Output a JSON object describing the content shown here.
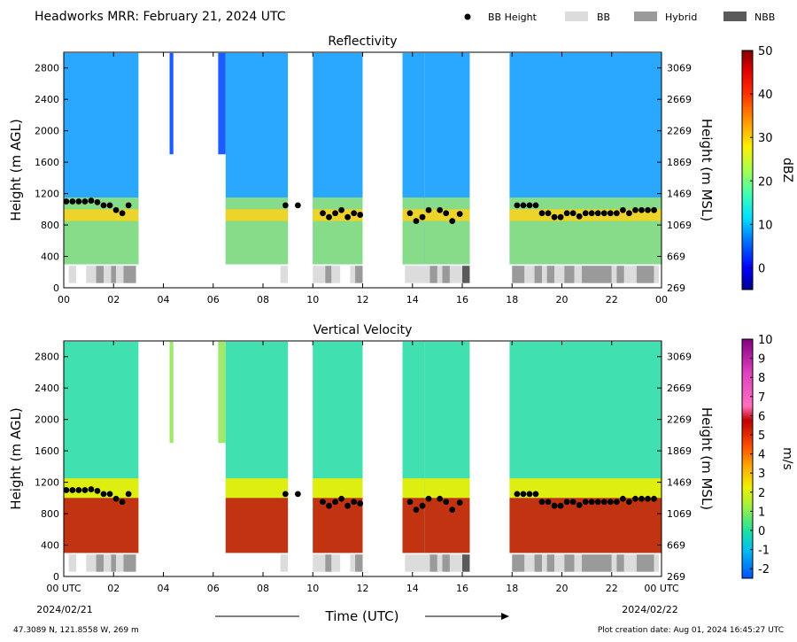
{
  "header": {
    "title": "Headworks MRR:  February 21, 2024 UTC",
    "legend": [
      {
        "label": "BB Height",
        "marker": "dot",
        "color": "#000000"
      },
      {
        "label": "BB",
        "marker": "box",
        "color": "#dcdcdc"
      },
      {
        "label": "Hybrid",
        "marker": "box",
        "color": "#9a9a9a"
      },
      {
        "label": "NBB",
        "marker": "box",
        "color": "#5a5a5a"
      }
    ]
  },
  "footer": {
    "location": "47.3089 N, 121.8558 W, 269 m",
    "creation": "Plot creation date: Aug 01, 2024 16:45:27 UTC",
    "start_date": "2024/02/21",
    "end_date": "2024/02/22",
    "xlabel": "Time (UTC)"
  },
  "chart_data": [
    {
      "type": "heatmap",
      "title": "Reflectivity",
      "ylabel": "Height (m AGL)",
      "ylabel_right": "Height (m MSL)",
      "ylim": [
        0,
        3000
      ],
      "xlim": [
        0,
        24
      ],
      "yticks": [
        0,
        400,
        800,
        1200,
        1600,
        2000,
        2400,
        2800
      ],
      "yticks_right": [
        269,
        669,
        1069,
        1469,
        1869,
        2269,
        2669,
        3069
      ],
      "xticks": [
        "00",
        "02",
        "04",
        "06",
        "08",
        "10",
        "12",
        "14",
        "16",
        "18",
        "20",
        "22",
        "00"
      ],
      "colorbar": {
        "label": "dBZ",
        "range": [
          -5,
          50
        ],
        "ticks": [
          0,
          10,
          20,
          30,
          40,
          50
        ]
      },
      "bb_height_label": "BB Height"
    },
    {
      "type": "heatmap",
      "title": "Vertical Velocity",
      "ylabel": "Height (m AGL)",
      "ylabel_right": "Height (m MSL)",
      "ylim": [
        0,
        3000
      ],
      "xlim": [
        0,
        24
      ],
      "yticks": [
        0,
        400,
        800,
        1200,
        1600,
        2000,
        2400,
        2800
      ],
      "yticks_right": [
        269,
        669,
        1069,
        1469,
        1869,
        2269,
        2669,
        3069
      ],
      "xticks": [
        "00 UTC",
        "02",
        "04",
        "06",
        "08",
        "10",
        "12",
        "14",
        "16",
        "18",
        "20",
        "22",
        "00 UTC"
      ],
      "colorbar": {
        "label": "m/s",
        "range": [
          -2.5,
          10
        ],
        "ticks": [
          -2,
          -1,
          0,
          1,
          2,
          3,
          4,
          5,
          6,
          7,
          8,
          9,
          10
        ]
      },
      "bb_height_label": "BB Height"
    }
  ],
  "precip_periods": [
    [
      0.0,
      3.0
    ],
    [
      4.25,
      4.4
    ],
    [
      6.2,
      6.5
    ],
    [
      6.5,
      9.0
    ],
    [
      10.0,
      12.0
    ],
    [
      13.6,
      14.5
    ],
    [
      14.5,
      16.3
    ],
    [
      17.9,
      24.0
    ]
  ],
  "bb_height_points": [
    [
      0.1,
      1100
    ],
    [
      0.35,
      1100
    ],
    [
      0.6,
      1100
    ],
    [
      0.85,
      1100
    ],
    [
      1.1,
      1110
    ],
    [
      1.35,
      1090
    ],
    [
      1.6,
      1050
    ],
    [
      1.85,
      1050
    ],
    [
      2.1,
      990
    ],
    [
      2.35,
      950
    ],
    [
      2.6,
      1050
    ],
    [
      8.9,
      1050
    ],
    [
      9.4,
      1050
    ],
    [
      10.4,
      950
    ],
    [
      10.65,
      900
    ],
    [
      10.9,
      950
    ],
    [
      11.15,
      990
    ],
    [
      11.4,
      900
    ],
    [
      11.65,
      950
    ],
    [
      11.9,
      930
    ],
    [
      13.9,
      950
    ],
    [
      14.15,
      850
    ],
    [
      14.4,
      900
    ],
    [
      14.65,
      990
    ],
    [
      15.1,
      990
    ],
    [
      15.35,
      950
    ],
    [
      15.6,
      850
    ],
    [
      15.9,
      940
    ],
    [
      18.2,
      1050
    ],
    [
      18.45,
      1050
    ],
    [
      18.7,
      1050
    ],
    [
      18.95,
      1050
    ],
    [
      19.2,
      950
    ],
    [
      19.45,
      950
    ],
    [
      19.7,
      900
    ],
    [
      19.95,
      900
    ],
    [
      20.2,
      950
    ],
    [
      20.45,
      950
    ],
    [
      20.7,
      910
    ],
    [
      20.95,
      950
    ],
    [
      21.2,
      950
    ],
    [
      21.45,
      950
    ],
    [
      21.7,
      950
    ],
    [
      21.95,
      950
    ],
    [
      22.2,
      950
    ],
    [
      22.45,
      990
    ],
    [
      22.7,
      950
    ],
    [
      22.95,
      990
    ],
    [
      23.2,
      990
    ],
    [
      23.45,
      990
    ],
    [
      23.7,
      990
    ]
  ],
  "bb_classification": [
    [
      0.2,
      0.5,
      "BB"
    ],
    [
      0.9,
      1.3,
      "BB"
    ],
    [
      1.3,
      1.6,
      "Hybrid"
    ],
    [
      1.6,
      1.9,
      "BB"
    ],
    [
      1.9,
      2.1,
      "Hybrid"
    ],
    [
      2.1,
      2.4,
      "BB"
    ],
    [
      2.4,
      2.9,
      "Hybrid"
    ],
    [
      8.7,
      9.0,
      "BB"
    ],
    [
      10.0,
      10.5,
      "BB"
    ],
    [
      10.5,
      10.75,
      "Hybrid"
    ],
    [
      10.75,
      11.1,
      "BB"
    ],
    [
      11.5,
      11.7,
      "BB"
    ],
    [
      11.7,
      12.0,
      "Hybrid"
    ],
    [
      13.7,
      14.7,
      "BB"
    ],
    [
      14.7,
      15.0,
      "Hybrid"
    ],
    [
      15.0,
      15.2,
      "BB"
    ],
    [
      15.2,
      15.5,
      "Hybrid"
    ],
    [
      15.5,
      16.0,
      "BB"
    ],
    [
      16.0,
      16.3,
      "NBB"
    ],
    [
      18.0,
      18.5,
      "Hybrid"
    ],
    [
      18.5,
      18.9,
      "BB"
    ],
    [
      18.9,
      19.2,
      "Hybrid"
    ],
    [
      19.2,
      19.4,
      "BB"
    ],
    [
      19.4,
      19.7,
      "Hybrid"
    ],
    [
      19.7,
      20.1,
      "BB"
    ],
    [
      20.1,
      20.5,
      "Hybrid"
    ],
    [
      20.5,
      20.8,
      "BB"
    ],
    [
      20.8,
      22.0,
      "Hybrid"
    ],
    [
      22.0,
      22.2,
      "BB"
    ],
    [
      22.2,
      22.5,
      "Hybrid"
    ],
    [
      22.5,
      23.0,
      "BB"
    ],
    [
      23.0,
      23.7,
      "Hybrid"
    ],
    [
      23.7,
      23.9,
      "BB"
    ]
  ]
}
